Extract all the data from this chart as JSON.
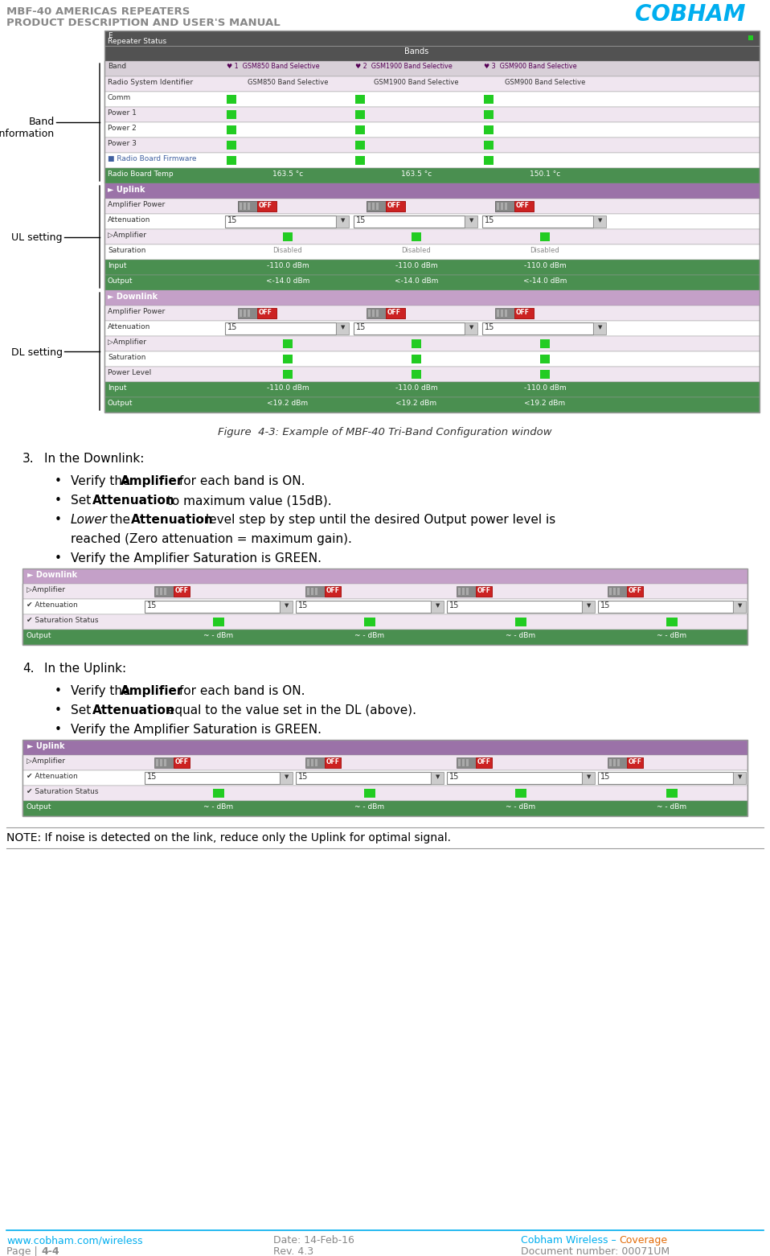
{
  "header_line1": "MBF-40 AMERICAS REPEATERS",
  "header_line2": "PRODUCT DESCRIPTION AND USER'S MANUAL",
  "header_color": "#888888",
  "cobham_color": "#00aeef",
  "cobham_text": "COBHAM",
  "figure_caption": "Figure  4-3: Example of MBF-40 Tri-Band Configuration window",
  "note_text": "NOTE: If noise is detected on the link, reduce only the Uplink for optimal signal.",
  "footer_left1": "www.cobham.com/wireless",
  "footer_left2": "Page | 4-4",
  "footer_mid1": "Date: 14-Feb-16",
  "footer_mid2": "Rev. 4.3",
  "footer_right1_blue": "Cobham Wireless – ",
  "footer_right1_orange": "Coverage",
  "footer_right2": "Document number: 00071UM",
  "footer_color": "#888888",
  "footer_blue": "#00aeef",
  "footer_orange": "#e36c09",
  "bg_color": "#ffffff",
  "label_band": "Band\ninformation",
  "label_ul": "UL setting",
  "label_dl": "DL setting",
  "band_labels": [
    "GSM850 Band Selective",
    "GSM1900 Band Selective",
    "GSM900 Band Selective"
  ],
  "band_cols": [
    "1",
    "2",
    "3"
  ],
  "temp_vals": [
    "163.5 °c",
    "163.5 °c",
    "150.1 °c"
  ]
}
